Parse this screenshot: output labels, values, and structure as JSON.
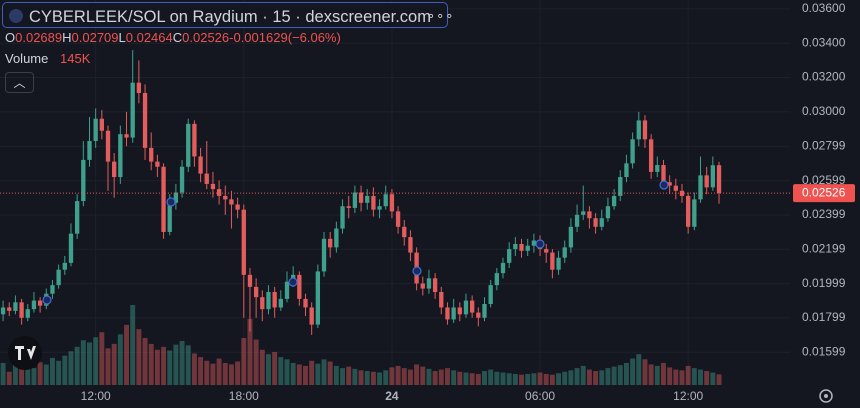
{
  "chart_data": {
    "type": "candlestick",
    "title": "CYBERLEEK/SOL on Raydium · 15 · dexscreener.com",
    "up_color": "#3fa08e",
    "down_color": "#e35d5d",
    "grid": true,
    "ohlc_header": {
      "labels": [
        "O",
        "H",
        "L",
        "C"
      ],
      "values": [
        0.02689,
        0.02709,
        0.02464,
        0.02526
      ],
      "change": -0.001629,
      "change_pct": {
        "value": -6.06,
        "label": "(−6.06%)"
      }
    },
    "last_price": 0.02526,
    "ylim": [
      0.01408,
      0.03652
    ],
    "yticks": [
      {
        "value": 0.036,
        "label": "0.03600"
      },
      {
        "value": 0.034,
        "label": "0.03400"
      },
      {
        "value": 0.032,
        "label": "0.03200"
      },
      {
        "value": 0.03,
        "label": "0.03000"
      },
      0.02799,
      0.02599,
      0.02399,
      0.02199,
      0.01999,
      0.01799,
      0.01599
    ],
    "xlim": [
      -0.5,
      127.5
    ],
    "xticks": [
      {
        "value": 15,
        "label": "12:00"
      },
      {
        "value": 39,
        "label": "18:00"
      },
      {
        "value": 63,
        "label": "24"
      },
      {
        "value": 87,
        "label": "06:00"
      },
      {
        "value": 111,
        "label": "12:00"
      }
    ],
    "candles": [
      [
        0.0182,
        0.019,
        0.0178,
        0.0186
      ],
      [
        0.0186,
        0.0189,
        0.0181,
        0.0184
      ],
      [
        0.0184,
        0.0193,
        0.0182,
        0.0189
      ],
      [
        0.0189,
        0.0191,
        0.0176,
        0.018
      ],
      [
        0.018,
        0.0188,
        0.0178,
        0.0185
      ],
      [
        0.0185,
        0.0195,
        0.0183,
        0.019
      ],
      [
        0.019,
        0.0192,
        0.0183,
        0.0187
      ],
      [
        0.0187,
        0.0197,
        0.0185,
        0.0194
      ],
      [
        0.0194,
        0.0202,
        0.0191,
        0.0199
      ],
      [
        0.0199,
        0.0211,
        0.0197,
        0.0208
      ],
      [
        0.0208,
        0.0216,
        0.0205,
        0.0212
      ],
      [
        0.0212,
        0.0235,
        0.021,
        0.0229
      ],
      [
        0.0229,
        0.0252,
        0.0226,
        0.0248
      ],
      [
        0.0248,
        0.0283,
        0.0245,
        0.0272
      ],
      [
        0.0272,
        0.0297,
        0.0268,
        0.0283
      ],
      [
        0.0283,
        0.0302,
        0.0279,
        0.0296
      ],
      [
        0.0296,
        0.0301,
        0.0284,
        0.0289
      ],
      [
        0.0289,
        0.0292,
        0.0254,
        0.0271
      ],
      [
        0.0271,
        0.0276,
        0.025,
        0.0262
      ],
      [
        0.0262,
        0.0292,
        0.0258,
        0.0287
      ],
      [
        0.0287,
        0.03,
        0.028,
        0.0285
      ],
      [
        0.0285,
        0.0336,
        0.0282,
        0.0317
      ],
      [
        0.0317,
        0.033,
        0.0305,
        0.0311
      ],
      [
        0.0311,
        0.0316,
        0.0272,
        0.0279
      ],
      [
        0.0279,
        0.0288,
        0.0266,
        0.0271
      ],
      [
        0.0271,
        0.0275,
        0.0262,
        0.0268
      ],
      [
        0.0268,
        0.027,
        0.0226,
        0.023
      ],
      [
        0.023,
        0.0252,
        0.0228,
        0.0247
      ],
      [
        0.0247,
        0.0258,
        0.0243,
        0.0253
      ],
      [
        0.0253,
        0.0272,
        0.025,
        0.0268
      ],
      [
        0.0268,
        0.0296,
        0.0265,
        0.0293
      ],
      [
        0.0293,
        0.0295,
        0.0268,
        0.0274
      ],
      [
        0.0274,
        0.0279,
        0.0259,
        0.0264
      ],
      [
        0.0264,
        0.0283,
        0.0255,
        0.0258
      ],
      [
        0.0258,
        0.0265,
        0.025,
        0.0255
      ],
      [
        0.0255,
        0.026,
        0.0246,
        0.0251
      ],
      [
        0.0251,
        0.0257,
        0.024,
        0.0249
      ],
      [
        0.0249,
        0.0254,
        0.0232,
        0.0246
      ],
      [
        0.0246,
        0.025,
        0.0238,
        0.0243
      ],
      [
        0.0243,
        0.0246,
        0.018,
        0.0205
      ],
      [
        0.0205,
        0.0209,
        0.0172,
        0.0198
      ],
      [
        0.0198,
        0.0203,
        0.018,
        0.0192
      ],
      [
        0.0192,
        0.0196,
        0.0178,
        0.0185
      ],
      [
        0.0185,
        0.0199,
        0.0182,
        0.0195
      ],
      [
        0.0195,
        0.0198,
        0.018,
        0.0186
      ],
      [
        0.0186,
        0.0196,
        0.0184,
        0.0191
      ],
      [
        0.0191,
        0.0207,
        0.0189,
        0.0201
      ],
      [
        0.0201,
        0.021,
        0.0198,
        0.0205
      ],
      [
        0.0205,
        0.0207,
        0.0187,
        0.0191
      ],
      [
        0.0191,
        0.0194,
        0.0181,
        0.0186
      ],
      [
        0.0186,
        0.0189,
        0.017,
        0.0176
      ],
      [
        0.0176,
        0.0211,
        0.0174,
        0.0207
      ],
      [
        0.0207,
        0.023,
        0.0204,
        0.0226
      ],
      [
        0.0226,
        0.023,
        0.0215,
        0.0221
      ],
      [
        0.0221,
        0.0236,
        0.0218,
        0.0232
      ],
      [
        0.0232,
        0.0249,
        0.0229,
        0.0245
      ],
      [
        0.0245,
        0.0251,
        0.0238,
        0.0244
      ],
      [
        0.0244,
        0.0257,
        0.0241,
        0.0253
      ],
      [
        0.0253,
        0.0257,
        0.0242,
        0.0247
      ],
      [
        0.0247,
        0.0255,
        0.0243,
        0.0251
      ],
      [
        0.0251,
        0.0256,
        0.0239,
        0.0243
      ],
      [
        0.0243,
        0.0249,
        0.0238,
        0.0245
      ],
      [
        0.0245,
        0.0257,
        0.0243,
        0.0252
      ],
      [
        0.0252,
        0.0255,
        0.0238,
        0.0242
      ],
      [
        0.0242,
        0.0245,
        0.0229,
        0.0233
      ],
      [
        0.0233,
        0.0237,
        0.0222,
        0.0227
      ],
      [
        0.0227,
        0.0231,
        0.0213,
        0.0218
      ],
      [
        0.0218,
        0.0221,
        0.0196,
        0.02
      ],
      [
        0.02,
        0.0204,
        0.0193,
        0.0197
      ],
      [
        0.0197,
        0.0208,
        0.0194,
        0.0203
      ],
      [
        0.0203,
        0.0206,
        0.0191,
        0.0195
      ],
      [
        0.0195,
        0.0198,
        0.0182,
        0.0186
      ],
      [
        0.0186,
        0.0189,
        0.0176,
        0.0179
      ],
      [
        0.0179,
        0.0191,
        0.0177,
        0.0186
      ],
      [
        0.0186,
        0.0189,
        0.0178,
        0.0182
      ],
      [
        0.0182,
        0.0194,
        0.018,
        0.019
      ],
      [
        0.019,
        0.0193,
        0.018,
        0.0183
      ],
      [
        0.0183,
        0.0186,
        0.0175,
        0.018
      ],
      [
        0.018,
        0.0192,
        0.0178,
        0.0188
      ],
      [
        0.0188,
        0.0202,
        0.0186,
        0.0199
      ],
      [
        0.0199,
        0.0209,
        0.0196,
        0.0206
      ],
      [
        0.0206,
        0.0215,
        0.0203,
        0.0212
      ],
      [
        0.0212,
        0.0224,
        0.0209,
        0.022
      ],
      [
        0.022,
        0.0227,
        0.0216,
        0.0223
      ],
      [
        0.0223,
        0.0226,
        0.0215,
        0.0219
      ],
      [
        0.0219,
        0.0226,
        0.0216,
        0.0222
      ],
      [
        0.0222,
        0.0229,
        0.0218,
        0.0225
      ],
      [
        0.0225,
        0.0228,
        0.0216,
        0.022
      ],
      [
        0.022,
        0.0223,
        0.0212,
        0.0218
      ],
      [
        0.0218,
        0.022,
        0.0203,
        0.0208
      ],
      [
        0.0208,
        0.0219,
        0.0205,
        0.0215
      ],
      [
        0.0215,
        0.0225,
        0.0212,
        0.0221
      ],
      [
        0.0221,
        0.0238,
        0.0218,
        0.0233
      ],
      [
        0.0233,
        0.0246,
        0.023,
        0.024
      ],
      [
        0.024,
        0.0257,
        0.0237,
        0.0242
      ],
      [
        0.0242,
        0.0245,
        0.0232,
        0.0238
      ],
      [
        0.0238,
        0.0241,
        0.0229,
        0.0233
      ],
      [
        0.0233,
        0.0243,
        0.0231,
        0.0238
      ],
      [
        0.0238,
        0.025,
        0.0236,
        0.0245
      ],
      [
        0.0245,
        0.0255,
        0.0243,
        0.0251
      ],
      [
        0.0251,
        0.0266,
        0.0248,
        0.0262
      ],
      [
        0.0262,
        0.0275,
        0.0259,
        0.027
      ],
      [
        0.027,
        0.0288,
        0.0267,
        0.0284
      ],
      [
        0.0284,
        0.03,
        0.028,
        0.0295
      ],
      [
        0.0295,
        0.0298,
        0.0279,
        0.0284
      ],
      [
        0.0284,
        0.0287,
        0.0261,
        0.0265
      ],
      [
        0.0265,
        0.0274,
        0.0262,
        0.0269
      ],
      [
        0.0269,
        0.0272,
        0.0255,
        0.0259
      ],
      [
        0.0259,
        0.0263,
        0.0252,
        0.0257
      ],
      [
        0.0257,
        0.0261,
        0.0249,
        0.0254
      ],
      [
        0.0254,
        0.0258,
        0.0247,
        0.0251
      ],
      [
        0.0251,
        0.0253,
        0.0229,
        0.0233
      ],
      [
        0.0233,
        0.0253,
        0.0231,
        0.0249
      ],
      [
        0.0249,
        0.0274,
        0.0247,
        0.0263
      ],
      [
        0.0263,
        0.0268,
        0.0252,
        0.0256
      ],
      [
        0.0256,
        0.0274,
        0.0254,
        0.02689
      ],
      [
        0.02689,
        0.02709,
        0.02464,
        0.02526
      ]
    ],
    "volume": {
      "title": "Volume",
      "current": {
        "value": 145000,
        "label": "145K"
      },
      "values": [
        300000,
        180000,
        420000,
        350000,
        260000,
        230000,
        310000,
        280000,
        370000,
        330000,
        400000,
        460000,
        520000,
        610000,
        580000,
        650000,
        720000,
        500000,
        560000,
        690000,
        820000,
        1090000,
        760000,
        640000,
        560000,
        480000,
        520000,
        470000,
        550000,
        600000,
        540000,
        430000,
        380000,
        330000,
        290000,
        360000,
        300000,
        280000,
        320000,
        640000,
        900000,
        620000,
        480000,
        420000,
        450000,
        380000,
        350000,
        300000,
        280000,
        260000,
        330000,
        290000,
        350000,
        320000,
        260000,
        230000,
        250000,
        220000,
        200000,
        190000,
        180000,
        170000,
        200000,
        240000,
        260000,
        230000,
        210000,
        280000,
        250000,
        220000,
        190000,
        210000,
        230000,
        200000,
        180000,
        170000,
        160000,
        150000,
        190000,
        210000,
        180000,
        170000,
        160000,
        150000,
        140000,
        150000,
        160000,
        170000,
        150000,
        140000,
        160000,
        180000,
        200000,
        230000,
        260000,
        210000,
        190000,
        200000,
        230000,
        250000,
        270000,
        300000,
        360000,
        420000,
        350000,
        280000,
        260000,
        300000,
        240000,
        210000,
        200000,
        260000,
        230000,
        210000,
        190000,
        170000,
        145000
      ]
    }
  }
}
